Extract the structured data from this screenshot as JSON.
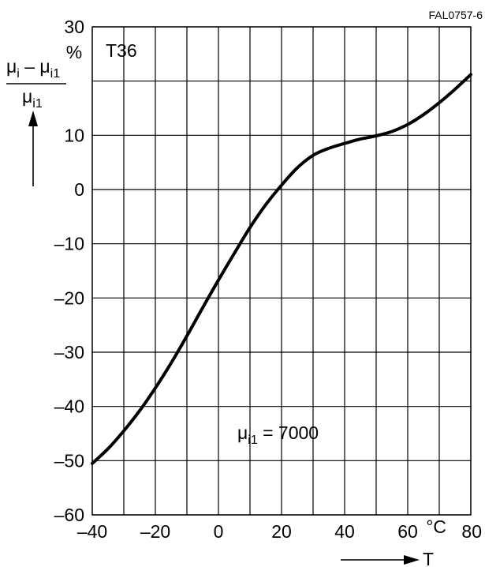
{
  "figure_code": "FAL0757-6",
  "material": "T36",
  "annotation": {
    "prefix": "μ",
    "sub": "i1",
    "text": " = 7000"
  },
  "ylabel": {
    "numerator": {
      "mu1": "μ",
      "sub1": "i",
      "minus": " – ",
      "mu2": "μ",
      "sub2": "i1"
    },
    "denominator": {
      "mu": "μ",
      "sub": "i1"
    },
    "unit": "%"
  },
  "xlabel": {
    "symbol": "T",
    "unit": "°C"
  },
  "chart_data": {
    "type": "line",
    "title": "",
    "xlim": [
      -40,
      80
    ],
    "ylim": [
      -60,
      30
    ],
    "x_ticks": [
      -40,
      -20,
      0,
      20,
      40,
      60,
      80
    ],
    "y_ticks": [
      -60,
      -50,
      -40,
      -30,
      -20,
      -10,
      0,
      10,
      30
    ],
    "grid": true,
    "series": [
      {
        "x": [
          -40,
          -35,
          -30,
          -25,
          -20,
          -15,
          -10,
          -5,
          0,
          5,
          10,
          15,
          20,
          25,
          30,
          35,
          40,
          45,
          50,
          55,
          60,
          65,
          70,
          75,
          80
        ],
        "y": [
          -50.5,
          -47.8,
          -44.5,
          -40.8,
          -36.6,
          -32.0,
          -27.0,
          -21.8,
          -16.7,
          -11.8,
          -7.0,
          -2.8,
          0.8,
          4.0,
          6.3,
          7.6,
          8.5,
          9.3,
          9.9,
          10.7,
          12.0,
          13.8,
          16.0,
          18.5,
          21.2
        ]
      }
    ]
  }
}
